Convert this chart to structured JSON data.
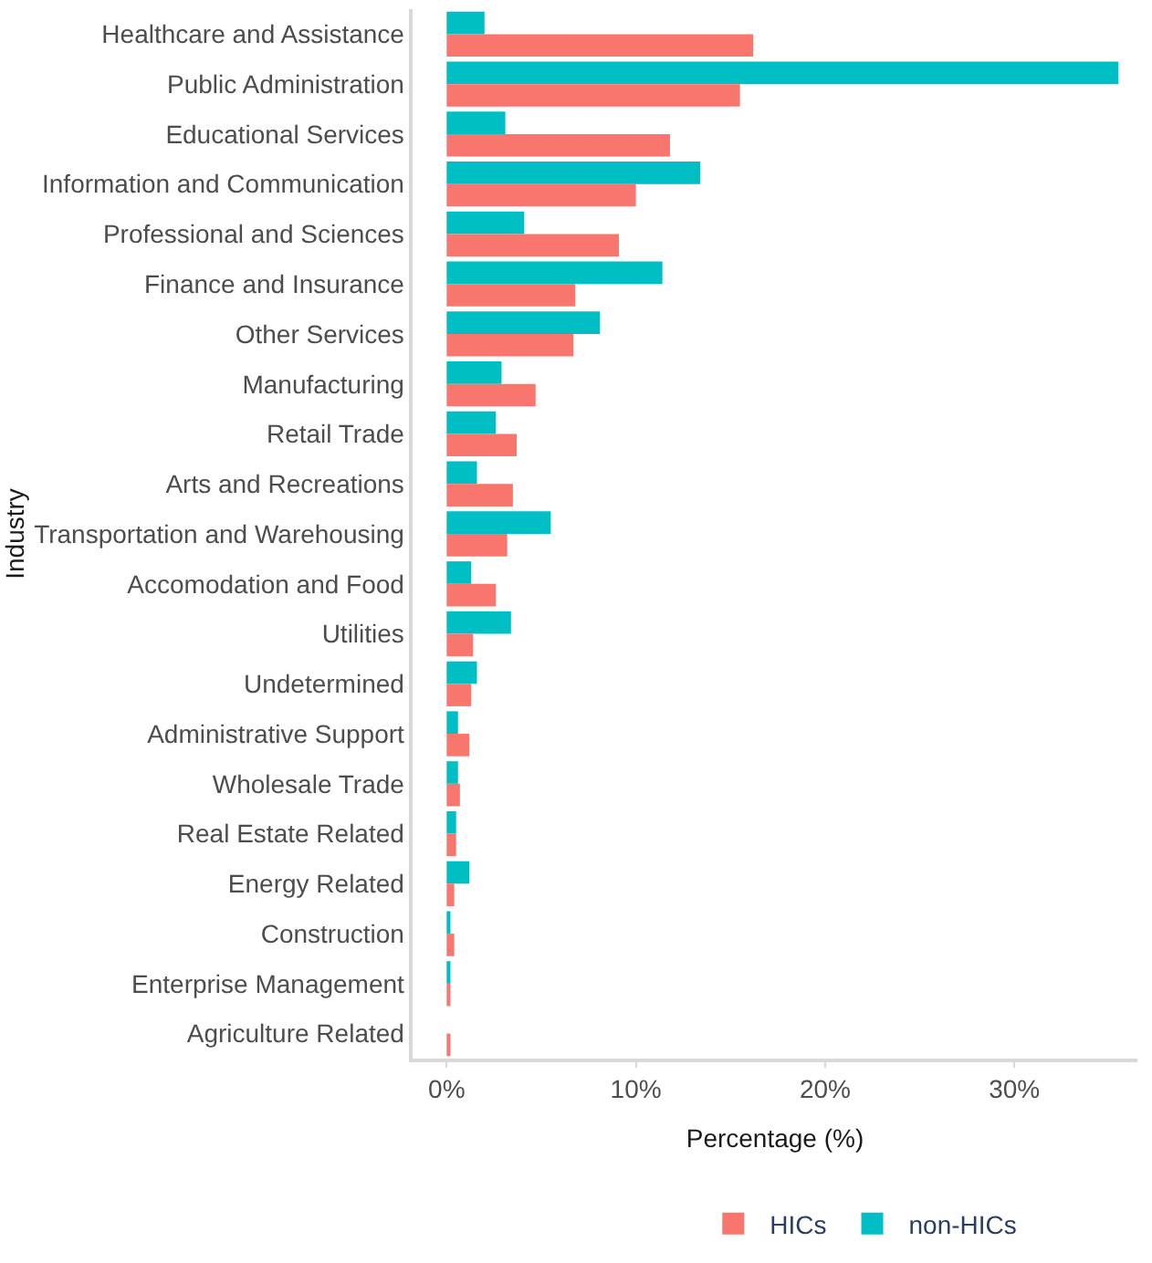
{
  "chart_data": {
    "type": "bar",
    "orientation": "horizontal",
    "xlabel": "Percentage (%)",
    "ylabel": "Industry",
    "categories": [
      "Healthcare and Assistance",
      "Public Administration",
      "Educational Services",
      "Information and Communication",
      "Professional and Sciences",
      "Finance and Insurance",
      "Other Services",
      "Manufacturing",
      "Retail Trade",
      "Arts and Recreations",
      "Transportation and Warehousing",
      "Accomodation and Food",
      "Utilities",
      "Undetermined",
      "Administrative Support",
      "Wholesale Trade",
      "Real Estate Related",
      "Energy Related",
      "Construction",
      "Enterprise Management",
      "Agriculture Related"
    ],
    "series": [
      {
        "name": "HICs",
        "color": "#f8766d",
        "values": [
          16.2,
          15.5,
          11.8,
          10.0,
          9.1,
          6.8,
          6.7,
          4.7,
          3.7,
          3.5,
          3.2,
          2.6,
          1.4,
          1.3,
          1.2,
          0.7,
          0.5,
          0.4,
          0.4,
          0.2,
          0.2
        ]
      },
      {
        "name": "non-HICs",
        "color": "#00bfc4",
        "values": [
          2.0,
          35.5,
          3.1,
          13.4,
          4.1,
          11.4,
          8.1,
          2.9,
          2.6,
          1.6,
          5.5,
          1.3,
          3.4,
          1.6,
          0.6,
          0.6,
          0.5,
          1.2,
          0.2,
          0.2,
          0
        ]
      }
    ],
    "xlim": [
      -1.8,
      36.5
    ],
    "xticks": [
      {
        "value": 0,
        "label": "0%"
      },
      {
        "value": 10,
        "label": "10%"
      },
      {
        "value": 20,
        "label": "20%"
      },
      {
        "value": 30,
        "label": "30%"
      }
    ],
    "grid": false,
    "legend": "bottom"
  }
}
